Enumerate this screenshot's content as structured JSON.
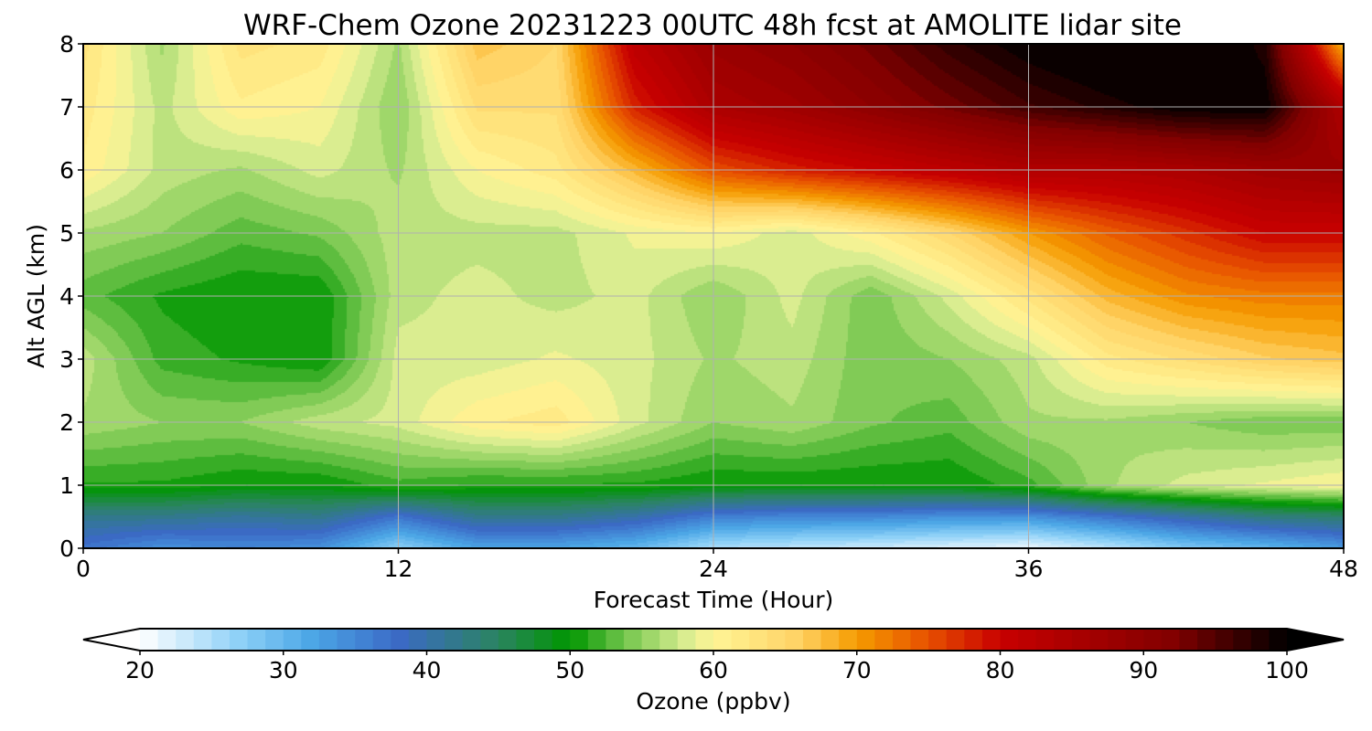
{
  "chart_data": {
    "type": "heatmap",
    "subtype": "filled-contour time-height cross-section",
    "title": "WRF-Chem Ozone  20231223 00UTC 48h fcst at AMOLITE lidar site",
    "xlabel": "Forecast Time (Hour)",
    "ylabel": "Alt AGL (km)",
    "xlim": [
      0,
      48
    ],
    "ylim": [
      0,
      8
    ],
    "x_ticks": [
      "0",
      "12",
      "24",
      "36",
      "48"
    ],
    "y_ticks": [
      "0",
      "1",
      "2",
      "3",
      "4",
      "5",
      "6",
      "7",
      "8"
    ],
    "grid": true,
    "x": [
      0,
      3,
      6,
      9,
      12,
      15,
      18,
      21,
      24,
      27,
      30,
      33,
      36,
      39,
      42,
      45,
      48
    ],
    "y": [
      0,
      0.5,
      1,
      2,
      3,
      4,
      5,
      6,
      7,
      8
    ],
    "z": [
      [
        37,
        34,
        35,
        34,
        27,
        32,
        32,
        30,
        25,
        24,
        23,
        22,
        21,
        24,
        28,
        30,
        33
      ],
      [
        42,
        42,
        41,
        42,
        37,
        42,
        42,
        40,
        36,
        35,
        35,
        34,
        34,
        37,
        40,
        43,
        44
      ],
      [
        51,
        51,
        50,
        50,
        52,
        51,
        51,
        51,
        50,
        50,
        50,
        50,
        52,
        56,
        58,
        59,
        60
      ],
      [
        56,
        55,
        55,
        57,
        58,
        61,
        62,
        58,
        55,
        56,
        54,
        53,
        56,
        56,
        55,
        54,
        54
      ],
      [
        57,
        52,
        51,
        50,
        58,
        58,
        59,
        58,
        56,
        57,
        54,
        55,
        57,
        62,
        64,
        66,
        67
      ],
      [
        53,
        51,
        50,
        50,
        57,
        58,
        57,
        58,
        55,
        58,
        54,
        58,
        63,
        68,
        71,
        72,
        72
      ],
      [
        56,
        55,
        53,
        54,
        57,
        57,
        57,
        59,
        60,
        58,
        61,
        65,
        70,
        74,
        77,
        80,
        80
      ],
      [
        61,
        57,
        56,
        58,
        56,
        60,
        62,
        68,
        75,
        78,
        80,
        82,
        84,
        84,
        85,
        87,
        88
      ],
      [
        62,
        57,
        61,
        60,
        55,
        64,
        64,
        78,
        85,
        87,
        90,
        93,
        96,
        98,
        100,
        100,
        84
      ],
      [
        63,
        56,
        63,
        62,
        56,
        67,
        65,
        82,
        88,
        90,
        93,
        97,
        100,
        102,
        103,
        98,
        68
      ]
    ],
    "colorbar": {
      "label": "Ozone  (ppbv)",
      "min": 20,
      "max": 100,
      "ticks": [
        "20",
        "30",
        "40",
        "50",
        "60",
        "70",
        "80",
        "90",
        "100"
      ],
      "extend": "both",
      "orientation": "horizontal",
      "position": "bottom",
      "colors": [
        "#ffffff",
        "#8dd0f7",
        "#4ba6e6",
        "#3b6ac6",
        "#2a8460",
        "#009600",
        "#78c850",
        "#d7ec90",
        "#fff596",
        "#ffd264",
        "#f59b00",
        "#e75000",
        "#c80000",
        "#820000",
        "#000000"
      ],
      "color_stops": [
        20,
        27,
        32,
        38,
        45,
        50,
        54,
        58,
        60,
        66,
        70,
        75,
        80,
        92,
        100
      ]
    }
  }
}
